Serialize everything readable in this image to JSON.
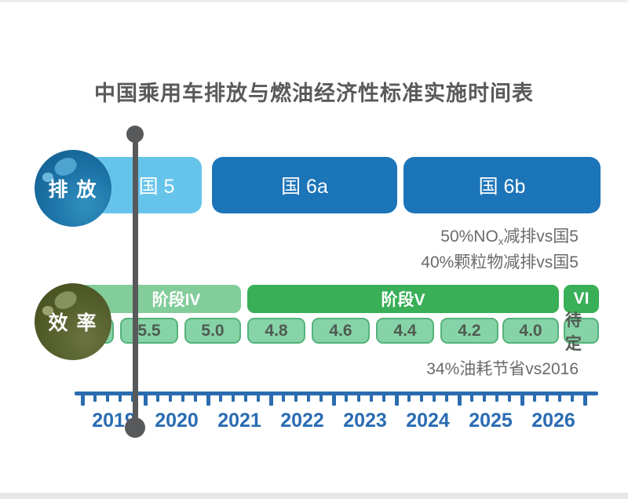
{
  "ui": {
    "title": "中国乘用车排放与燃油经济性标准实施时间表",
    "emission": {
      "row_label": "排 放",
      "bars": [
        "国 5",
        "国 6a",
        "国 6b"
      ],
      "notes": {
        "nox_prefix": "50%NO",
        "nox_sub": "x",
        "nox_suffix": "减排vs国5",
        "pm": "40%颗粒物减排vs国5"
      }
    },
    "efficiency": {
      "row_label": "效 率",
      "phases": [
        "阶段IV",
        "阶段V",
        "VI"
      ],
      "targets": [
        "",
        "5.5",
        "5.0",
        "4.8",
        "4.6",
        "4.4",
        "4.2",
        "4.0",
        "待定"
      ],
      "note": "34%油耗节省vs2016"
    },
    "axis": {
      "years": [
        "2019",
        "2020",
        "2021",
        "2022",
        "2023",
        "2024",
        "2025",
        "2026"
      ]
    }
  },
  "colors": {
    "emission_light": "#66c4ea",
    "emission_dark": "#1c74b9",
    "emission_sphere": "#1e74a8",
    "phase_light": "#83cd9b",
    "phase_dark": "#39af58",
    "target_fill": "#86d3a7",
    "target_border": "#55b27b",
    "efficiency_sphere": "#55602c",
    "axis_blue": "#2b6cb0",
    "marker_gray": "#58595b",
    "text_gray": "#696a6d"
  },
  "chart_data": {
    "type": "table",
    "title": "中国乘用车排放与燃油经济性标准实施时间表",
    "x_axis": {
      "years": [
        2019,
        2020,
        2021,
        2022,
        2023,
        2024,
        2025,
        2026
      ],
      "range": [
        2019,
        2027.2
      ],
      "minor_ticks_per_year": 5
    },
    "marker_year": 2019.8,
    "series": [
      {
        "name": "排放",
        "segments": [
          {
            "label": "国 5",
            "start_year": 2018.9,
            "end_year": 2020.9,
            "color": "#66c4ea"
          },
          {
            "label": "国 6a",
            "start_year": 2021.1,
            "end_year": 2024.0,
            "color": "#1c74b9"
          },
          {
            "label": "国 6b",
            "start_year": 2024.1,
            "end_year": 2027.2,
            "color": "#1c74b9"
          }
        ],
        "annotations": [
          "50%NOx减排vs国5",
          "40%颗粒物减排vs国5"
        ]
      },
      {
        "name": "效率",
        "segments": [
          {
            "label": "阶段IV",
            "start_year": 2018.9,
            "end_year": 2021.5,
            "color": "#83cd9b"
          },
          {
            "label": "阶段V",
            "start_year": 2021.6,
            "end_year": 2026.6,
            "color": "#39af58"
          },
          {
            "label": "VI",
            "start_year": 2026.7,
            "end_year": 2027.2,
            "color": "#39af58"
          }
        ],
        "fuel_consumption_targets_L_per_100km": {
          "years": [
            2019,
            2020,
            2021,
            2022,
            2023,
            2024,
            2025,
            2026,
            2027
          ],
          "values": [
            "",
            "5.5",
            "5.0",
            "4.8",
            "4.6",
            "4.4",
            "4.2",
            "4.0",
            "待定"
          ]
        },
        "annotations": [
          "34%油耗节省vs2016"
        ]
      }
    ]
  }
}
